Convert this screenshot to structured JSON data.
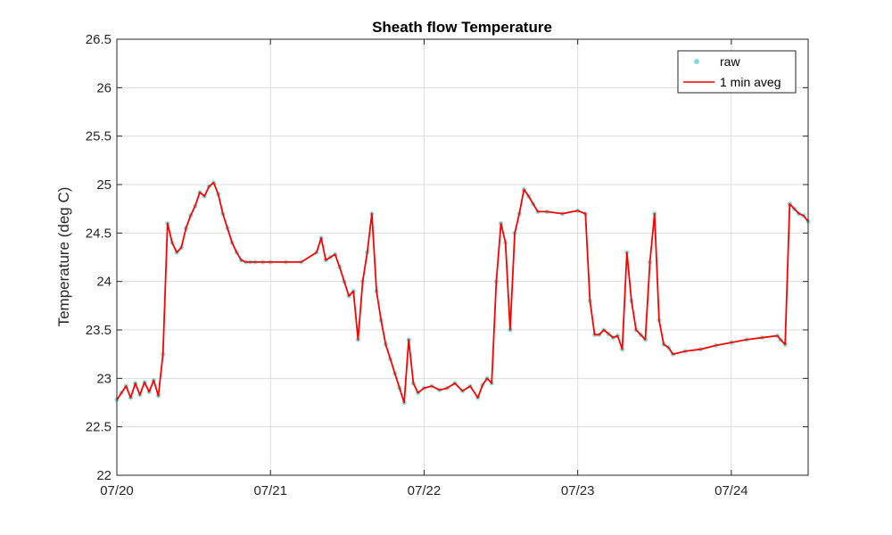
{
  "chart_data": {
    "type": "line",
    "title": "Sheath flow Temperature",
    "xlabel": "",
    "ylabel": "Temperature (deg C)",
    "x_ticks": [
      "07/20",
      "07/21",
      "07/22",
      "07/23",
      "07/24"
    ],
    "x_tick_days": [
      0,
      1,
      2,
      3,
      4
    ],
    "xlim": [
      0,
      4.5
    ],
    "ylim": [
      22,
      26.5
    ],
    "y_ticks": [
      22,
      22.5,
      23,
      23.5,
      24,
      24.5,
      25,
      25.5,
      26,
      26.5
    ],
    "grid": true,
    "legend_location": "top-right",
    "colors": {
      "raw": "#2ec4c0",
      "avg": "#ff0000",
      "axis": "#262626",
      "grid": "#dcdcdc"
    },
    "series": [
      {
        "name": "raw",
        "style": "dots",
        "x": [
          0.0,
          0.03,
          0.06,
          0.09,
          0.12,
          0.15,
          0.18,
          0.21,
          0.24,
          0.27,
          0.3,
          0.33,
          0.36,
          0.39,
          0.42,
          0.45,
          0.48,
          0.51,
          0.54,
          0.57,
          0.6,
          0.63,
          0.66,
          0.69,
          0.72,
          0.75,
          0.78,
          0.81,
          0.84,
          0.87,
          0.9,
          0.95,
          1.0,
          1.1,
          1.2,
          1.3,
          1.33,
          1.36,
          1.39,
          1.42,
          1.45,
          1.48,
          1.51,
          1.54,
          1.57,
          1.6,
          1.63,
          1.66,
          1.69,
          1.72,
          1.75,
          1.78,
          1.81,
          1.84,
          1.87,
          1.9,
          1.93,
          1.96,
          2.0,
          2.05,
          2.1,
          2.15,
          2.2,
          2.25,
          2.3,
          2.35,
          2.38,
          2.41,
          2.44,
          2.47,
          2.5,
          2.53,
          2.56,
          2.59,
          2.62,
          2.65,
          2.68,
          2.71,
          2.74,
          2.8,
          2.9,
          3.0,
          3.05,
          3.08,
          3.11,
          3.14,
          3.17,
          3.2,
          3.23,
          3.26,
          3.29,
          3.32,
          3.35,
          3.38,
          3.41,
          3.44,
          3.47,
          3.5,
          3.53,
          3.56,
          3.59,
          3.62,
          3.7,
          3.8,
          3.9,
          4.0,
          4.1,
          4.2,
          4.3,
          4.32,
          4.35,
          4.38,
          4.41,
          4.44,
          4.47,
          4.5
        ],
        "y": [
          22.78,
          22.85,
          22.92,
          22.8,
          22.95,
          22.83,
          22.96,
          22.86,
          22.98,
          22.82,
          23.25,
          24.6,
          24.4,
          24.3,
          24.35,
          24.55,
          24.68,
          24.78,
          24.92,
          24.88,
          24.98,
          25.02,
          24.9,
          24.7,
          24.55,
          24.4,
          24.3,
          24.22,
          24.2,
          24.2,
          24.2,
          24.2,
          24.2,
          24.2,
          24.2,
          24.3,
          24.45,
          24.22,
          24.25,
          24.28,
          24.15,
          24.0,
          23.85,
          23.9,
          23.4,
          24.0,
          24.3,
          24.7,
          23.9,
          23.6,
          23.35,
          23.2,
          23.05,
          22.9,
          22.75,
          23.4,
          22.95,
          22.85,
          22.9,
          22.92,
          22.88,
          22.9,
          22.95,
          22.87,
          22.92,
          22.8,
          22.93,
          23.0,
          22.95,
          24.0,
          24.6,
          24.4,
          23.5,
          24.5,
          24.7,
          24.95,
          24.88,
          24.8,
          24.72,
          24.72,
          24.7,
          24.73,
          24.7,
          23.8,
          23.45,
          23.45,
          23.5,
          23.46,
          23.42,
          23.44,
          23.3,
          24.3,
          23.8,
          23.5,
          23.45,
          23.4,
          24.2,
          24.7,
          23.6,
          23.35,
          23.32,
          23.25,
          23.28,
          23.3,
          23.34,
          23.37,
          23.4,
          23.42,
          23.44,
          23.4,
          23.35,
          24.8,
          24.75,
          24.7,
          24.68,
          24.62
        ]
      },
      {
        "name": "1 min aveg",
        "style": "line",
        "x": [
          0.0,
          0.03,
          0.06,
          0.09,
          0.12,
          0.15,
          0.18,
          0.21,
          0.24,
          0.27,
          0.3,
          0.33,
          0.36,
          0.39,
          0.42,
          0.45,
          0.48,
          0.51,
          0.54,
          0.57,
          0.6,
          0.63,
          0.66,
          0.69,
          0.72,
          0.75,
          0.78,
          0.81,
          0.84,
          0.87,
          0.9,
          0.95,
          1.0,
          1.1,
          1.2,
          1.3,
          1.33,
          1.36,
          1.39,
          1.42,
          1.45,
          1.48,
          1.51,
          1.54,
          1.57,
          1.6,
          1.63,
          1.66,
          1.69,
          1.72,
          1.75,
          1.78,
          1.81,
          1.84,
          1.87,
          1.9,
          1.93,
          1.96,
          2.0,
          2.05,
          2.1,
          2.15,
          2.2,
          2.25,
          2.3,
          2.35,
          2.38,
          2.41,
          2.44,
          2.47,
          2.5,
          2.53,
          2.56,
          2.59,
          2.62,
          2.65,
          2.68,
          2.71,
          2.74,
          2.8,
          2.9,
          3.0,
          3.05,
          3.08,
          3.11,
          3.14,
          3.17,
          3.2,
          3.23,
          3.26,
          3.29,
          3.32,
          3.35,
          3.38,
          3.41,
          3.44,
          3.47,
          3.5,
          3.53,
          3.56,
          3.59,
          3.62,
          3.7,
          3.8,
          3.9,
          4.0,
          4.1,
          4.2,
          4.3,
          4.32,
          4.35,
          4.38,
          4.41,
          4.44,
          4.47,
          4.5
        ],
        "y": [
          22.78,
          22.85,
          22.92,
          22.8,
          22.95,
          22.83,
          22.96,
          22.86,
          22.98,
          22.82,
          23.25,
          24.6,
          24.4,
          24.3,
          24.35,
          24.55,
          24.68,
          24.78,
          24.92,
          24.88,
          24.98,
          25.02,
          24.9,
          24.7,
          24.55,
          24.4,
          24.3,
          24.22,
          24.2,
          24.2,
          24.2,
          24.2,
          24.2,
          24.2,
          24.2,
          24.3,
          24.45,
          24.22,
          24.25,
          24.28,
          24.15,
          24.0,
          23.85,
          23.9,
          23.4,
          24.0,
          24.3,
          24.7,
          23.9,
          23.6,
          23.35,
          23.2,
          23.05,
          22.9,
          22.75,
          23.4,
          22.95,
          22.85,
          22.9,
          22.92,
          22.88,
          22.9,
          22.95,
          22.87,
          22.92,
          22.8,
          22.93,
          23.0,
          22.95,
          24.0,
          24.6,
          24.4,
          23.5,
          24.5,
          24.7,
          24.95,
          24.88,
          24.8,
          24.72,
          24.72,
          24.7,
          24.73,
          24.7,
          23.8,
          23.45,
          23.45,
          23.5,
          23.46,
          23.42,
          23.44,
          23.3,
          24.3,
          23.8,
          23.5,
          23.45,
          23.4,
          24.2,
          24.7,
          23.6,
          23.35,
          23.32,
          23.25,
          23.28,
          23.3,
          23.34,
          23.37,
          23.4,
          23.42,
          23.44,
          23.4,
          23.35,
          24.8,
          24.75,
          24.7,
          24.68,
          24.62
        ]
      }
    ]
  }
}
